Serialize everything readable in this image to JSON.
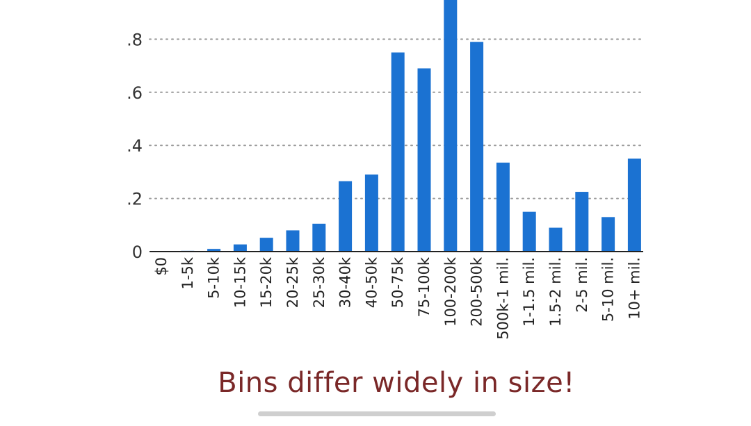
{
  "caption": "Bins differ widely in size!",
  "colors": {
    "bar": "#1b72d2",
    "grid": "#9a9a9a",
    "axis": "#222222",
    "caption": "#7a2828"
  },
  "chart_data": {
    "type": "bar",
    "categories": [
      "$0",
      "1-5k",
      "5-10k",
      "10-15k",
      "15-20k",
      "20-25k",
      "25-30k",
      "30-40k",
      "40-50k",
      "50-75k",
      "75-100k",
      "100-200k",
      "200-500k",
      "500k-1 mil.",
      "1-1.5 mil.",
      "1.5-2 mil.",
      "2-5 mil.",
      "5-10 mil.",
      "10+ mil."
    ],
    "values": [
      0.0,
      0.003,
      0.01,
      0.027,
      0.052,
      0.08,
      0.105,
      0.265,
      0.29,
      0.75,
      0.69,
      0.97,
      0.79,
      0.335,
      0.15,
      0.09,
      0.225,
      0.13,
      0.35
    ],
    "yticks": [
      0,
      0.2,
      0.4,
      0.6,
      0.8
    ],
    "yticklabels": [
      "0",
      ".2",
      ".4",
      ".6",
      ".8"
    ],
    "ylim": [
      0,
      0.95
    ],
    "grid": true,
    "title": "",
    "xlabel": "",
    "ylabel": ""
  }
}
